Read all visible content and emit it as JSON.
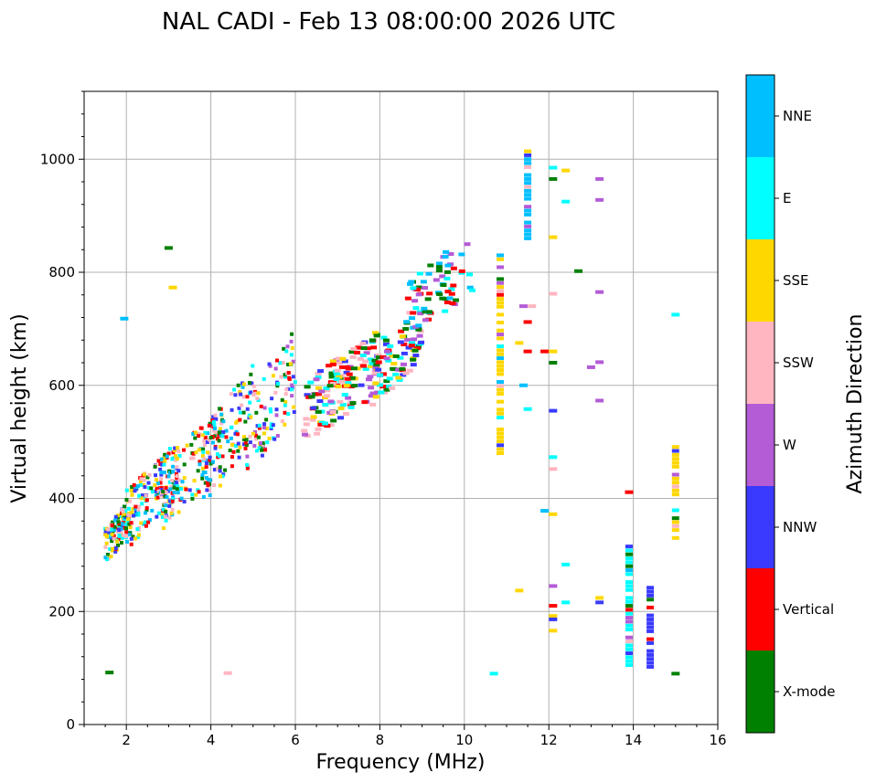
{
  "chart_data": {
    "type": "scatter",
    "title": "NAL CADI - Feb 13 08:00:00 2026 UTC",
    "xlabel": "Frequency (MHz)",
    "ylabel": "Virtual height (km)",
    "xlim": [
      1,
      16
    ],
    "ylim": [
      0,
      1120
    ],
    "xticks": [
      2,
      4,
      6,
      8,
      10,
      12,
      14,
      16
    ],
    "yticks": [
      0,
      200,
      400,
      600,
      800,
      1000
    ],
    "grid": true,
    "colorbar": {
      "label": "Azimuth Direction",
      "categories": [
        {
          "name": "X-mode",
          "color": "#008000"
        },
        {
          "name": "Vertical",
          "color": "#ff0000"
        },
        {
          "name": "NNW",
          "color": "#3a3aff"
        },
        {
          "name": "W",
          "color": "#b45bd6"
        },
        {
          "name": "SSW",
          "color": "#ffb6c1"
        },
        {
          "name": "SSE",
          "color": "#ffd700"
        },
        {
          "name": "E",
          "color": "#00ffff"
        },
        {
          "name": "NNE",
          "color": "#00bfff"
        }
      ]
    },
    "clusters": [
      {
        "f": [
          1.5,
          2.1
        ],
        "h": [
          285,
          400
        ],
        "n": 120
      },
      {
        "f": [
          2.0,
          3.2
        ],
        "h": [
          310,
          500
        ],
        "n": 160
      },
      {
        "f": [
          2.8,
          4.2
        ],
        "h": [
          340,
          560
        ],
        "n": 130
      },
      {
        "f": [
          3.8,
          5.0
        ],
        "h": [
          380,
          640
        ],
        "n": 110
      },
      {
        "f": [
          4.8,
          6.0
        ],
        "h": [
          430,
          700
        ],
        "n": 110
      },
      {
        "f": [
          6.2,
          8.0
        ],
        "h": [
          495,
          700
        ],
        "n": 150
      },
      {
        "f": [
          7.8,
          9.0
        ],
        "h": [
          560,
          750
        ],
        "n": 80
      },
      {
        "f": [
          8.6,
          10.2
        ],
        "h": [
          680,
          870
        ],
        "n": 70
      }
    ],
    "traces": [
      {
        "f": 10.85,
        "h": [
          480,
          830
        ],
        "azimuth": "SSE"
      },
      {
        "f": 13.9,
        "h": [
          105,
          320
        ],
        "azimuth": "E"
      },
      {
        "f": 14.4,
        "h": [
          95,
          245
        ],
        "azimuth": "NNW"
      },
      {
        "f": 15.0,
        "h": [
          330,
          495
        ],
        "azimuth": "SSE"
      },
      {
        "f": 11.5,
        "h": [
          860,
          1015
        ],
        "azimuth": "NNE"
      }
    ],
    "points": [
      {
        "f": 1.95,
        "h": 718,
        "azimuth": "NNE"
      },
      {
        "f": 3.0,
        "h": 843,
        "azimuth": "X-mode"
      },
      {
        "f": 3.1,
        "h": 773,
        "azimuth": "SSE"
      },
      {
        "f": 1.6,
        "h": 92,
        "azimuth": "X-mode"
      },
      {
        "f": 4.4,
        "h": 91,
        "azimuth": "SSW"
      },
      {
        "f": 10.7,
        "h": 90,
        "azimuth": "E"
      },
      {
        "f": 11.3,
        "h": 237,
        "azimuth": "SSE"
      },
      {
        "f": 15.0,
        "h": 90,
        "azimuth": "X-mode"
      },
      {
        "f": 15.0,
        "h": 725,
        "azimuth": "E"
      },
      {
        "f": 12.1,
        "h": 985,
        "azimuth": "E"
      },
      {
        "f": 12.4,
        "h": 980,
        "azimuth": "SSE"
      },
      {
        "f": 12.1,
        "h": 965,
        "azimuth": "X-mode"
      },
      {
        "f": 12.4,
        "h": 925,
        "azimuth": "E"
      },
      {
        "f": 13.2,
        "h": 965,
        "azimuth": "W"
      },
      {
        "f": 13.2,
        "h": 928,
        "azimuth": "W"
      },
      {
        "f": 12.1,
        "h": 862,
        "azimuth": "SSE"
      },
      {
        "f": 12.7,
        "h": 802,
        "azimuth": "X-mode"
      },
      {
        "f": 13.2,
        "h": 765,
        "azimuth": "W"
      },
      {
        "f": 12.1,
        "h": 762,
        "azimuth": "SSW"
      },
      {
        "f": 12.1,
        "h": 660,
        "azimuth": "SSE"
      },
      {
        "f": 12.1,
        "h": 640,
        "azimuth": "X-mode"
      },
      {
        "f": 13.0,
        "h": 632,
        "azimuth": "W"
      },
      {
        "f": 13.2,
        "h": 641,
        "azimuth": "W"
      },
      {
        "f": 13.2,
        "h": 573,
        "azimuth": "W"
      },
      {
        "f": 12.1,
        "h": 555,
        "azimuth": "NNW"
      },
      {
        "f": 12.1,
        "h": 473,
        "azimuth": "E"
      },
      {
        "f": 12.1,
        "h": 452,
        "azimuth": "SSW"
      },
      {
        "f": 12.1,
        "h": 372,
        "azimuth": "SSE"
      },
      {
        "f": 12.4,
        "h": 283,
        "azimuth": "E"
      },
      {
        "f": 12.1,
        "h": 245,
        "azimuth": "W"
      },
      {
        "f": 12.4,
        "h": 216,
        "azimuth": "E"
      },
      {
        "f": 12.1,
        "h": 210,
        "azimuth": "Vertical"
      },
      {
        "f": 12.1,
        "h": 192,
        "azimuth": "SSE"
      },
      {
        "f": 12.1,
        "h": 186,
        "azimuth": "NNW"
      },
      {
        "f": 12.1,
        "h": 166,
        "azimuth": "SSE"
      },
      {
        "f": 13.2,
        "h": 224,
        "azimuth": "SSE"
      },
      {
        "f": 13.2,
        "h": 216,
        "azimuth": "NNW"
      },
      {
        "f": 13.9,
        "h": 411,
        "azimuth": "Vertical"
      },
      {
        "f": 11.9,
        "h": 378,
        "azimuth": "NNE"
      },
      {
        "f": 11.5,
        "h": 558,
        "azimuth": "E"
      },
      {
        "f": 11.4,
        "h": 600,
        "azimuth": "NNE"
      },
      {
        "f": 11.3,
        "h": 675,
        "azimuth": "SSE"
      },
      {
        "f": 11.5,
        "h": 660,
        "azimuth": "Vertical"
      },
      {
        "f": 11.9,
        "h": 660,
        "azimuth": "Vertical"
      },
      {
        "f": 11.6,
        "h": 740,
        "azimuth": "SSW"
      },
      {
        "f": 11.5,
        "h": 712,
        "azimuth": "Vertical"
      },
      {
        "f": 11.4,
        "h": 740,
        "azimuth": "W"
      }
    ]
  }
}
